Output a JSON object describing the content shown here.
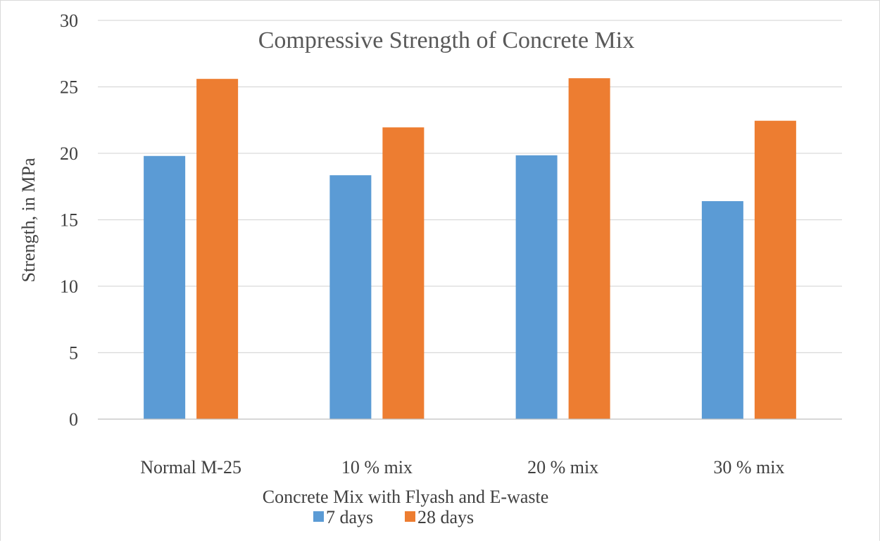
{
  "chart_data": {
    "type": "bar",
    "title": "Compressive Strength of Concrete Mix",
    "xlabel": "Concrete Mix with Flyash and E-waste",
    "ylabel": "Strength, in MPa",
    "categories": [
      "Normal M-25",
      "10 % mix",
      "20 % mix",
      "30 % mix"
    ],
    "series": [
      {
        "name": "7 days",
        "color": "#5B9BD5",
        "values": [
          19.8,
          18.35,
          19.85,
          16.4
        ]
      },
      {
        "name": "28 days",
        "color": "#ED7D31",
        "values": [
          25.6,
          21.95,
          25.65,
          22.45
        ]
      }
    ],
    "ylim": [
      0,
      30
    ],
    "yticks": [
      "0",
      "5",
      "10",
      "15",
      "20",
      "25",
      "30"
    ],
    "grid": true,
    "legend_position": "bottom"
  }
}
